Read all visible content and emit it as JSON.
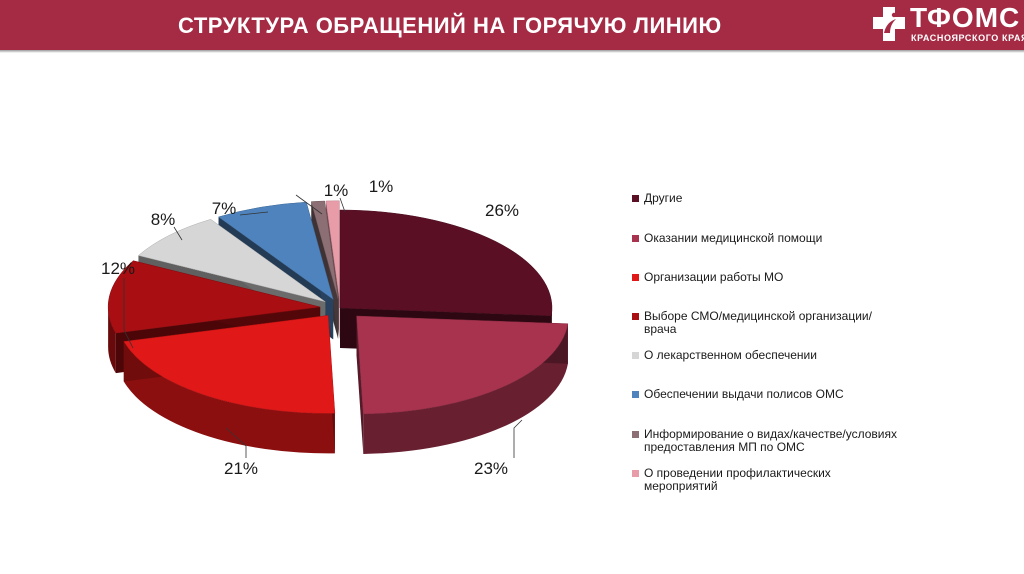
{
  "header": {
    "title": "СТРУКТУРА ОБРАЩЕНИЙ НА ГОРЯЧУЮ ЛИНИЮ",
    "logo_name": "ТФОМС",
    "logo_sub": "КРАСНОЯРСКОГО КРАЯ"
  },
  "chart_data": {
    "type": "pie",
    "title": "",
    "legend_position": "right",
    "slices": [
      {
        "label": "Другие",
        "value": 26,
        "value_label": "26%",
        "color": "#5a0f24"
      },
      {
        "label": "Оказании медицинской помощи",
        "value": 23,
        "value_label": "23%",
        "color": "#a8334f"
      },
      {
        "label": "Организации работы МО",
        "value": 21,
        "value_label": "21%",
        "color": "#e01818"
      },
      {
        "label": "Выборе СМО/медицинской организации/врача",
        "value": 12,
        "value_label": "12%",
        "color": "#a80e12"
      },
      {
        "label": "О лекарственном обеспечении",
        "value": 8,
        "value_label": "8%",
        "color": "#d6d6d6"
      },
      {
        "label": "Обеспечении выдачи полисов ОМС",
        "value": 7,
        "value_label": "7%",
        "color": "#4f83bd"
      },
      {
        "label": "Информирование о видах/качестве/условиях предоставления МП по ОМС",
        "value": 1,
        "value_label": "1%",
        "color": "#8c6f74"
      },
      {
        "label": "О проведении профилактических мероприятий",
        "value": 1,
        "value_label": "1%",
        "color": "#e89ca8"
      }
    ]
  }
}
